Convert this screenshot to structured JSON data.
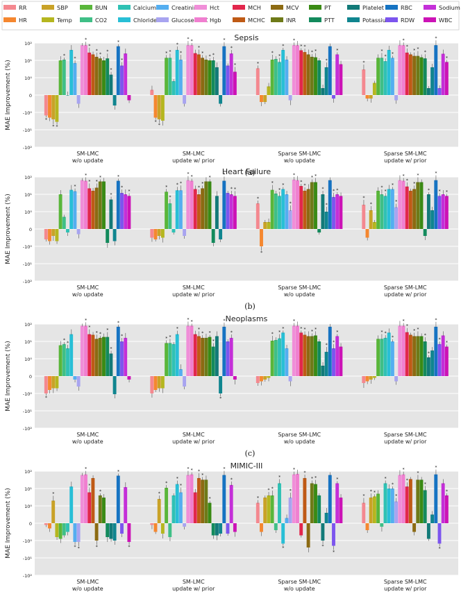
{
  "figure": {
    "legend": [
      {
        "name": "RR",
        "color": "#f4888f"
      },
      {
        "name": "HR",
        "color": "#f5872f"
      },
      {
        "name": "SBP",
        "color": "#c9a227"
      },
      {
        "name": "Temp",
        "color": "#b5b61f"
      },
      {
        "name": "BUN",
        "color": "#59b63a"
      },
      {
        "name": "CO2",
        "color": "#3fbf86"
      },
      {
        "name": "Calcium",
        "color": "#2fc1b4"
      },
      {
        "name": "Chloride",
        "color": "#28bfd6"
      },
      {
        "name": "Creatinine",
        "color": "#54aef0"
      },
      {
        "name": "Glucose POC",
        "color": "#a8a4f0"
      },
      {
        "name": "Hct",
        "color": "#f08ed8"
      },
      {
        "name": "Hgb",
        "color": "#f07fd0"
      },
      {
        "name": "MCH",
        "color": "#e2264c"
      },
      {
        "name": "MCHC",
        "color": "#bf5a15"
      },
      {
        "name": "MCV",
        "color": "#8c6a12"
      },
      {
        "name": "INR",
        "color": "#6e7a18"
      },
      {
        "name": "PT",
        "color": "#3a8a14"
      },
      {
        "name": "PTT",
        "color": "#138a5c"
      },
      {
        "name": "Platelet",
        "color": "#127a78"
      },
      {
        "name": "Potassium",
        "color": "#10858f"
      },
      {
        "name": "RBC",
        "color": "#1673c2"
      },
      {
        "name": "RDW",
        "color": "#7c55ee"
      },
      {
        "name": "Sodium",
        "color": "#c42fd8"
      },
      {
        "name": "WBC",
        "color": "#cc13b6"
      }
    ],
    "groups": [
      "SM-LMC\nw/o update",
      "SM-LMC\nupdate w/ prior",
      "Sparse SM-LMC\nw/o update",
      "Sparse SM-LMC\nupdate w/ prior"
    ],
    "ylabel": "MAE Improvement (%)"
  },
  "chart_data": [
    {
      "type": "bar",
      "title": "Sepsis",
      "caption": "(a)",
      "scale": "symlog",
      "ylim": [
        -100,
        100
      ],
      "yticks": [
        "10²",
        "10¹",
        "10⁰",
        "0",
        "-10⁰",
        "-10¹",
        "-10²"
      ],
      "groups": [
        [
          -1.5,
          -2,
          -2.5,
          -3.5,
          10,
          11,
          0,
          40,
          7,
          -0.5,
          75,
          75,
          28,
          22,
          16,
          13,
          10,
          13,
          1.5,
          -0.6,
          65,
          5,
          25,
          -0.3
        ],
        [
          0.3,
          -2,
          -2.5,
          -3,
          14,
          14,
          0.8,
          40,
          11,
          -0.5,
          75,
          75,
          26,
          22,
          14,
          11,
          10,
          10,
          4,
          -0.5,
          65,
          5,
          25,
          2.2
        ],
        [
          3.5,
          -0.4,
          -0.4,
          0.5,
          11,
          12,
          8,
          40,
          11,
          -0.3,
          75,
          75,
          38,
          30,
          22,
          16,
          15,
          10,
          0.4,
          4,
          65,
          -0.2,
          22,
          6
        ],
        [
          3,
          -0.2,
          -0.2,
          0.7,
          14,
          14,
          9,
          40,
          14,
          -0.3,
          75,
          75,
          28,
          22,
          18,
          18,
          15,
          13,
          0.4,
          4,
          75,
          0.4,
          24,
          8
        ]
      ]
    },
    {
      "type": "bar",
      "title": "Heart Failure",
      "caption": "(b)",
      "scale": "symlog",
      "ylim": [
        -100,
        100
      ],
      "yticks": [
        "10²",
        "10¹",
        "10⁰",
        "0",
        "-10⁰",
        "-10¹",
        "-10²"
      ],
      "groups": [
        [
          -0.6,
          -0.7,
          -0.4,
          -0.7,
          10,
          0.7,
          -0.2,
          18,
          15,
          -0.3,
          65,
          60,
          22,
          16,
          24,
          55,
          55,
          -0.8,
          5,
          -0.7,
          60,
          12,
          10,
          8
        ],
        [
          -0.5,
          -0.6,
          -0.4,
          -0.5,
          14,
          3,
          -0.2,
          17,
          17,
          -0.4,
          65,
          60,
          20,
          10,
          22,
          55,
          55,
          -0.8,
          8,
          -0.6,
          60,
          12,
          10,
          8
        ],
        [
          3,
          -1,
          0.4,
          0.4,
          18,
          11,
          8,
          20,
          10,
          1.2,
          70,
          65,
          30,
          16,
          20,
          50,
          50,
          -0.2,
          10,
          1.0,
          65,
          7,
          10,
          8
        ],
        [
          2.5,
          -0.5,
          1.2,
          0.4,
          16,
          10,
          8,
          20,
          20,
          1.8,
          65,
          60,
          28,
          16,
          20,
          50,
          50,
          -0.4,
          10,
          1.2,
          65,
          8,
          10,
          8
        ]
      ]
    },
    {
      "type": "bar",
      "title": "Neoplasms",
      "caption": "(c)",
      "scale": "symlog",
      "ylim": [
        -100,
        100
      ],
      "yticks": [
        "10²",
        "10¹",
        "10⁰",
        "0",
        "-10⁰",
        "-10¹",
        "-10²"
      ],
      "groups": [
        [
          -1.0,
          -0.8,
          -0.7,
          -0.7,
          6,
          7,
          4,
          26,
          -0.2,
          -0.6,
          80,
          80,
          26,
          24,
          14,
          16,
          18,
          18,
          2,
          -1.1,
          70,
          10,
          16,
          -0.2
        ],
        [
          -1.0,
          -0.8,
          -0.7,
          -0.7,
          8,
          8,
          7,
          26,
          0.4,
          -0.6,
          80,
          80,
          26,
          20,
          16,
          16,
          18,
          5,
          20,
          -1.0,
          70,
          10,
          16,
          -0.2
        ],
        [
          -0.4,
          -0.3,
          -0.2,
          -0.1,
          11,
          12,
          15,
          32,
          4,
          -0.3,
          80,
          80,
          32,
          24,
          20,
          20,
          22,
          10,
          0.6,
          2.5,
          70,
          4,
          20,
          5
        ],
        [
          -0.4,
          -0.3,
          -0.2,
          -0.1,
          14,
          14,
          16,
          32,
          10,
          -0.3,
          80,
          80,
          34,
          24,
          20,
          20,
          20,
          10,
          1.2,
          3,
          70,
          7,
          22,
          5
        ]
      ]
    },
    {
      "type": "bar",
      "title": "MIMIC-III",
      "caption": "(d)",
      "scale": "symlog",
      "ylim": [
        -100,
        100
      ],
      "yticks": [
        "10²",
        "10¹",
        "10⁰",
        "0",
        "-10⁰",
        "-10¹",
        "-10²"
      ],
      "groups": [
        [
          -0.1,
          -0.3,
          2,
          -0.8,
          -0.9,
          -0.7,
          -0.5,
          13,
          -1.2,
          -1.2,
          60,
          65,
          6,
          40,
          -1,
          4,
          3,
          -0.8,
          -0.9,
          -1.0,
          55,
          -0.6,
          12,
          -1.2
        ],
        [
          -0.1,
          -0.5,
          2.5,
          -0.6,
          11,
          -0.8,
          4,
          18,
          6,
          -0.2,
          60,
          65,
          6,
          40,
          32,
          32,
          1.5,
          -0.7,
          -0.7,
          -0.6,
          60,
          -0.6,
          16,
          -0.5
        ],
        [
          1.5,
          -0.5,
          3,
          4,
          4,
          -0.4,
          20,
          -1.5,
          0.3,
          3,
          65,
          70,
          -0.7,
          40,
          -2.5,
          20,
          18,
          4,
          -1.0,
          0.6,
          60,
          -2,
          20,
          3
        ],
        [
          1.5,
          -0.4,
          3,
          3.5,
          5,
          -0.2,
          20,
          10,
          10,
          1.8,
          60,
          65,
          13,
          35,
          -0.5,
          32,
          32,
          8,
          -0.9,
          0.5,
          65,
          -1.5,
          20,
          4
        ]
      ]
    }
  ]
}
